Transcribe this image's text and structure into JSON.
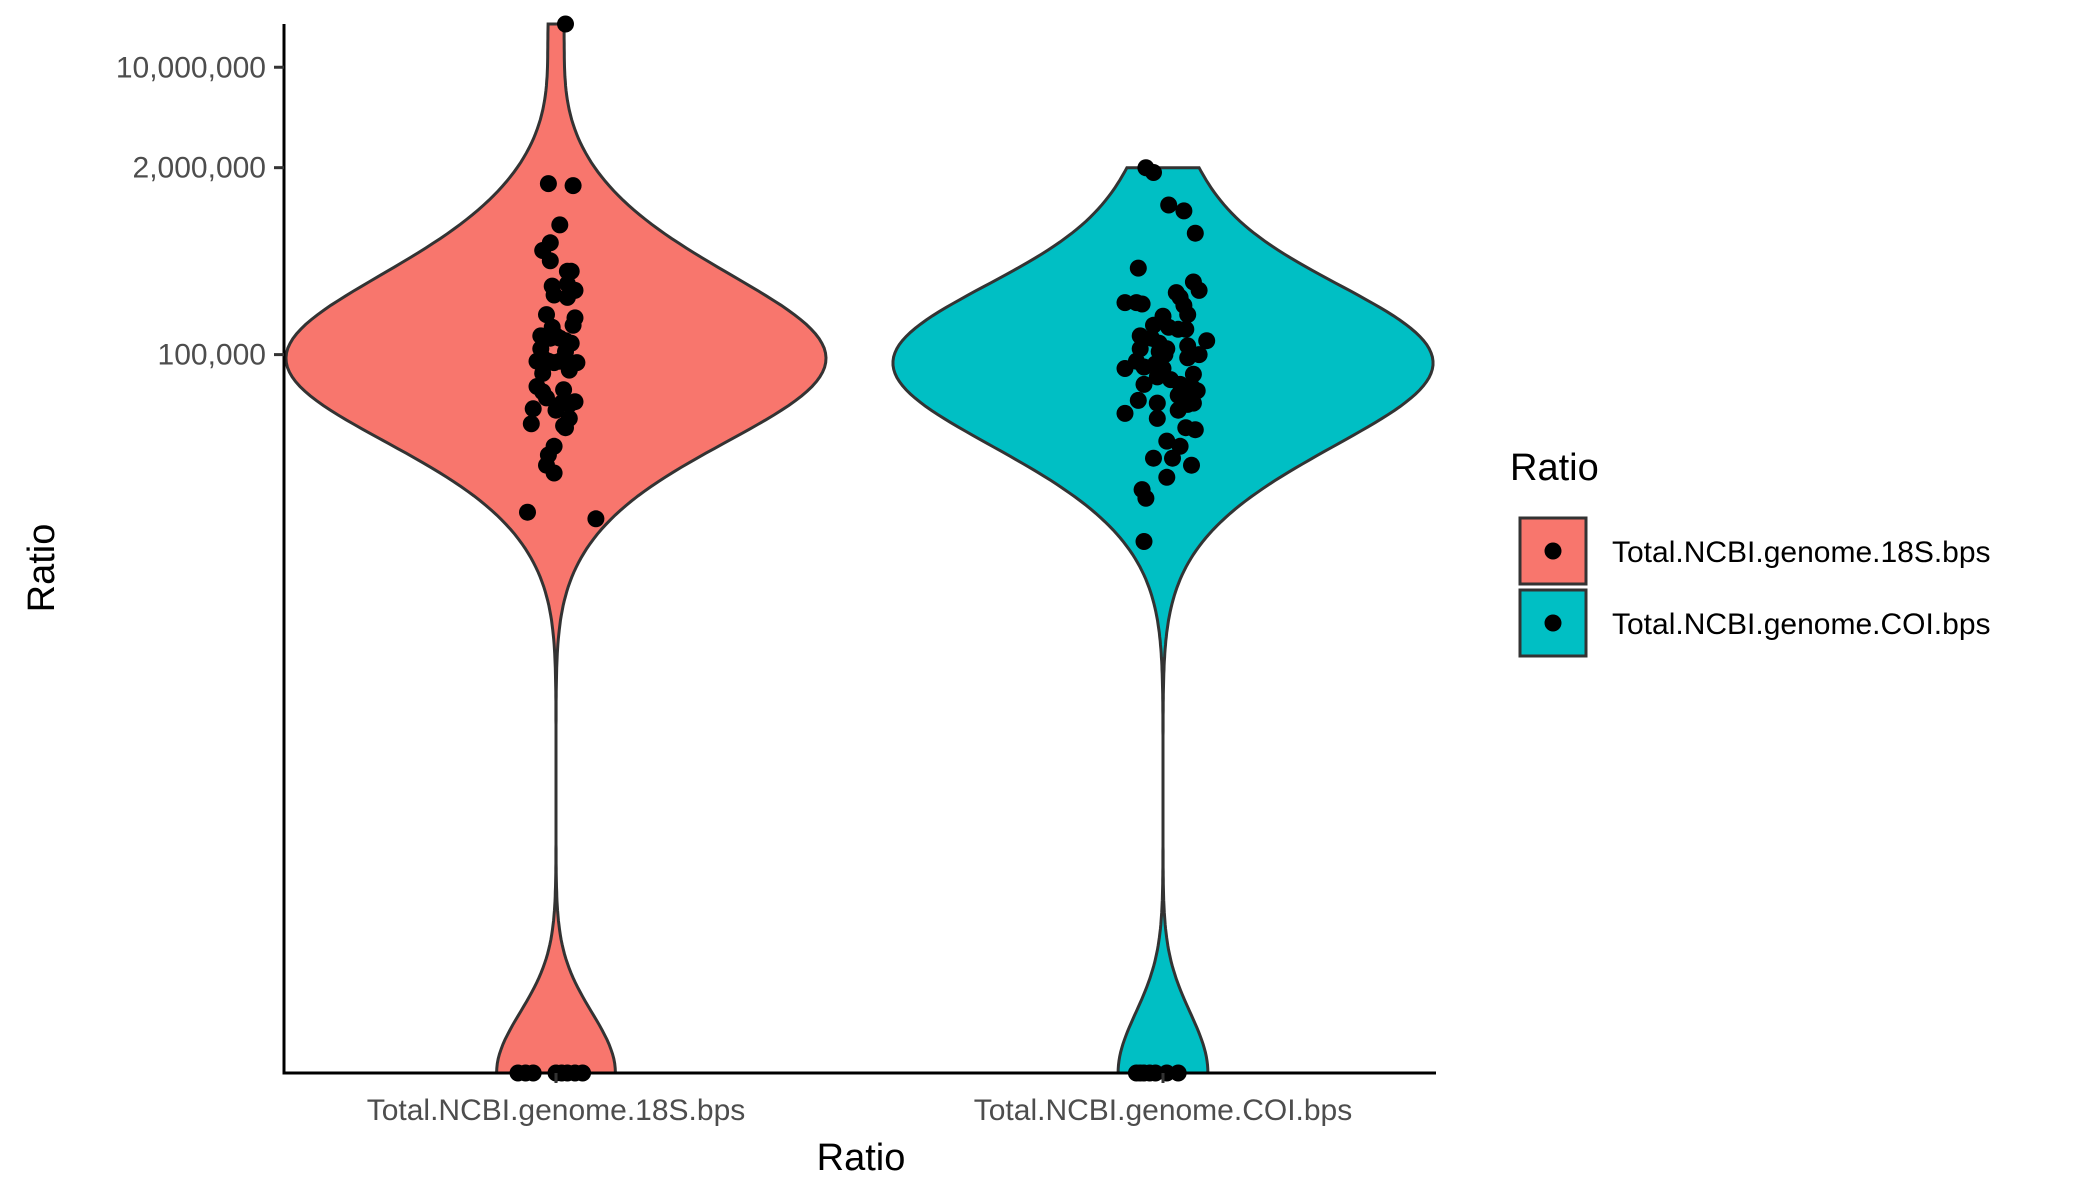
{
  "chart_data": {
    "type": "violin",
    "xlabel": "Ratio",
    "ylabel": "Ratio",
    "y_scale": "log10",
    "ylim": [
      1,
      20000000
    ],
    "y_ticks": [
      {
        "value": 100000,
        "label": "100,000"
      },
      {
        "value": 2000000,
        "label": "2,000,000"
      },
      {
        "value": 10000000,
        "label": "10,000,000"
      }
    ],
    "categories": [
      "Total.NCBI.genome.18S.bps",
      "Total.NCBI.genome.COI.bps"
    ],
    "legend": {
      "title": "Ratio",
      "position": "right",
      "entries": [
        {
          "label": "Total.NCBI.genome.18S.bps",
          "color": "#F8766D"
        },
        {
          "label": "Total.NCBI.genome.COI.bps",
          "color": "#00BFC4"
        }
      ]
    },
    "grid": false,
    "series": [
      {
        "category": "Total.NCBI.genome.18S.bps",
        "color": "#F8766D",
        "points": [
          {
            "x": 0.05,
            "y": 20000000
          },
          {
            "x": 0.09,
            "y": 1500000
          },
          {
            "x": -0.04,
            "y": 1550000
          },
          {
            "x": 0.02,
            "y": 800000
          },
          {
            "x": -0.03,
            "y": 600000
          },
          {
            "x": -0.07,
            "y": 530000
          },
          {
            "x": -0.03,
            "y": 450000
          },
          {
            "x": 0.06,
            "y": 380000
          },
          {
            "x": 0.08,
            "y": 380000
          },
          {
            "x": -0.02,
            "y": 300000
          },
          {
            "x": 0.06,
            "y": 310000
          },
          {
            "x": 0.1,
            "y": 280000
          },
          {
            "x": -0.01,
            "y": 260000
          },
          {
            "x": 0.06,
            "y": 250000
          },
          {
            "x": -0.05,
            "y": 190000
          },
          {
            "x": 0.1,
            "y": 180000
          },
          {
            "x": 0.09,
            "y": 160000
          },
          {
            "x": -0.02,
            "y": 155000
          },
          {
            "x": -0.08,
            "y": 135000
          },
          {
            "x": 0.0,
            "y": 135000
          },
          {
            "x": 0.02,
            "y": 130000
          },
          {
            "x": -0.05,
            "y": 130000
          },
          {
            "x": -0.03,
            "y": 130000
          },
          {
            "x": 0.05,
            "y": 125000
          },
          {
            "x": 0.08,
            "y": 120000
          },
          {
            "x": -0.08,
            "y": 110000
          },
          {
            "x": 0.05,
            "y": 105000
          },
          {
            "x": -0.07,
            "y": 95000
          },
          {
            "x": -0.1,
            "y": 90000
          },
          {
            "x": -0.04,
            "y": 90000
          },
          {
            "x": -0.01,
            "y": 88000
          },
          {
            "x": 0.02,
            "y": 90000
          },
          {
            "x": -0.06,
            "y": 85000
          },
          {
            "x": 0.07,
            "y": 88000
          },
          {
            "x": 0.11,
            "y": 88000
          },
          {
            "x": 0.07,
            "y": 78000
          },
          {
            "x": -0.07,
            "y": 74000
          },
          {
            "x": -0.1,
            "y": 60000
          },
          {
            "x": -0.07,
            "y": 55000
          },
          {
            "x": 0.04,
            "y": 57000
          },
          {
            "x": -0.05,
            "y": 50000
          },
          {
            "x": -0.12,
            "y": 42000
          },
          {
            "x": 0.03,
            "y": 46000
          },
          {
            "x": 0.1,
            "y": 47000
          },
          {
            "x": 0.07,
            "y": 45000
          },
          {
            "x": 0.0,
            "y": 41000
          },
          {
            "x": 0.07,
            "y": 36000
          },
          {
            "x": -0.13,
            "y": 33000
          },
          {
            "x": 0.04,
            "y": 32000
          },
          {
            "x": 0.05,
            "y": 31000
          },
          {
            "x": -0.01,
            "y": 23000
          },
          {
            "x": -0.04,
            "y": 20000
          },
          {
            "x": -0.05,
            "y": 17000
          },
          {
            "x": -0.01,
            "y": 15000
          },
          {
            "x": -0.15,
            "y": 8000
          },
          {
            "x": 0.21,
            "y": 7200
          },
          {
            "x": -0.2,
            "y": 1
          },
          {
            "x": -0.16,
            "y": 1
          },
          {
            "x": -0.12,
            "y": 1
          },
          {
            "x": 0.0,
            "y": 1
          },
          {
            "x": 0.03,
            "y": 1
          },
          {
            "x": 0.06,
            "y": 1
          },
          {
            "x": 0.1,
            "y": 1
          },
          {
            "x": 0.14,
            "y": 1
          }
        ]
      },
      {
        "category": "Total.NCBI.genome.COI.bps",
        "color": "#00BFC4",
        "points": [
          {
            "x": -0.09,
            "y": 2000000
          },
          {
            "x": -0.05,
            "y": 1850000
          },
          {
            "x": 0.03,
            "y": 1100000
          },
          {
            "x": 0.11,
            "y": 1000000
          },
          {
            "x": 0.17,
            "y": 700000
          },
          {
            "x": -0.13,
            "y": 400000
          },
          {
            "x": 0.16,
            "y": 320000
          },
          {
            "x": 0.19,
            "y": 280000
          },
          {
            "x": 0.07,
            "y": 270000
          },
          {
            "x": 0.09,
            "y": 250000
          },
          {
            "x": -0.2,
            "y": 230000
          },
          {
            "x": -0.14,
            "y": 230000
          },
          {
            "x": -0.11,
            "y": 225000
          },
          {
            "x": 0.11,
            "y": 220000
          },
          {
            "x": 0.13,
            "y": 190000
          },
          {
            "x": 0.0,
            "y": 185000
          },
          {
            "x": -0.05,
            "y": 160000
          },
          {
            "x": 0.03,
            "y": 155000
          },
          {
            "x": 0.12,
            "y": 150000
          },
          {
            "x": 0.08,
            "y": 150000
          },
          {
            "x": -0.12,
            "y": 135000
          },
          {
            "x": -0.06,
            "y": 130000
          },
          {
            "x": 0.23,
            "y": 125000
          },
          {
            "x": -0.02,
            "y": 120000
          },
          {
            "x": 0.13,
            "y": 115000
          },
          {
            "x": 0.02,
            "y": 110000
          },
          {
            "x": -0.12,
            "y": 110000
          },
          {
            "x": -0.02,
            "y": 105000
          },
          {
            "x": 0.01,
            "y": 100000
          },
          {
            "x": 0.19,
            "y": 100000
          },
          {
            "x": 0.13,
            "y": 95000
          },
          {
            "x": -0.14,
            "y": 90000
          },
          {
            "x": -0.04,
            "y": 86000
          },
          {
            "x": -0.1,
            "y": 82000
          },
          {
            "x": 0.0,
            "y": 80000
          },
          {
            "x": -0.2,
            "y": 80000
          },
          {
            "x": 0.16,
            "y": 73000
          },
          {
            "x": -0.03,
            "y": 70000
          },
          {
            "x": 0.04,
            "y": 67000
          },
          {
            "x": -0.1,
            "y": 62000
          },
          {
            "x": 0.09,
            "y": 62000
          },
          {
            "x": 0.15,
            "y": 60000
          },
          {
            "x": 0.12,
            "y": 57000
          },
          {
            "x": 0.18,
            "y": 56000
          },
          {
            "x": 0.08,
            "y": 52000
          },
          {
            "x": -0.13,
            "y": 48000
          },
          {
            "x": -0.03,
            "y": 46000
          },
          {
            "x": 0.13,
            "y": 45000
          },
          {
            "x": 0.16,
            "y": 46000
          },
          {
            "x": 0.08,
            "y": 41000
          },
          {
            "x": -0.2,
            "y": 39000
          },
          {
            "x": -0.03,
            "y": 36000
          },
          {
            "x": 0.12,
            "y": 31000
          },
          {
            "x": 0.17,
            "y": 30000
          },
          {
            "x": 0.02,
            "y": 25000
          },
          {
            "x": 0.09,
            "y": 23000
          },
          {
            "x": -0.05,
            "y": 19000
          },
          {
            "x": 0.05,
            "y": 19000
          },
          {
            "x": 0.15,
            "y": 17000
          },
          {
            "x": 0.02,
            "y": 14000
          },
          {
            "x": -0.11,
            "y": 11500
          },
          {
            "x": -0.09,
            "y": 10000
          },
          {
            "x": -0.1,
            "y": 5000
          },
          {
            "x": -0.14,
            "y": 1
          },
          {
            "x": -0.12,
            "y": 1
          },
          {
            "x": -0.1,
            "y": 1
          },
          {
            "x": -0.07,
            "y": 1
          },
          {
            "x": -0.04,
            "y": 1
          },
          {
            "x": 0.02,
            "y": 1
          },
          {
            "x": 0.08,
            "y": 1
          }
        ]
      }
    ]
  }
}
